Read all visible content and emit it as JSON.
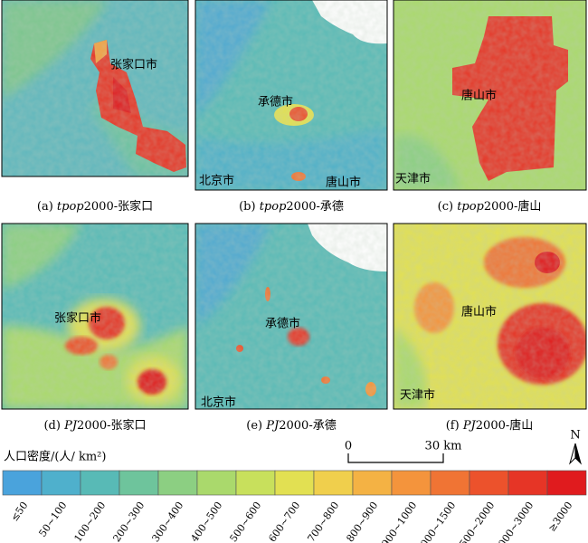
{
  "panels": [
    {
      "caption": {
        "prefix": "(a) ",
        "italic": "tpop",
        "rest": "2000-张家口"
      },
      "labels": [
        "张家口市"
      ]
    },
    {
      "caption": {
        "prefix": "(b) ",
        "italic": "tpop",
        "rest": "2000-承德"
      },
      "labels": [
        "承德市",
        "北京市",
        "唐山市"
      ]
    },
    {
      "caption": {
        "prefix": "(c) ",
        "italic": "tpop",
        "rest": "2000-唐山"
      },
      "labels": [
        "唐山市",
        "天津市"
      ]
    },
    {
      "caption": {
        "prefix": "(d) ",
        "italic": "PJ",
        "rest": "2000-张家口"
      },
      "labels": [
        "张家口市"
      ]
    },
    {
      "caption": {
        "prefix": "(e) ",
        "italic": "PJ",
        "rest": "2000-承德"
      },
      "labels": [
        "承德市",
        "北京市"
      ]
    },
    {
      "caption": {
        "prefix": "(f) ",
        "italic": "PJ",
        "rest": "2000-唐山"
      },
      "labels": [
        "唐山市",
        "天津市"
      ]
    }
  ],
  "legend": {
    "title": "人口密度/(人/ km²)",
    "classes": [
      {
        "label": "≤50",
        "color": "#4aa3dc"
      },
      {
        "label": "50~100",
        "color": "#4fb0cc"
      },
      {
        "label": "100~200",
        "color": "#58bab6"
      },
      {
        "label": "200~300",
        "color": "#6ec49c"
      },
      {
        "label": "300~400",
        "color": "#8ccf82"
      },
      {
        "label": "400~500",
        "color": "#aad96c"
      },
      {
        "label": "500~600",
        "color": "#c8e05c"
      },
      {
        "label": "600~700",
        "color": "#e2e052"
      },
      {
        "label": "700~800",
        "color": "#f0cf4c"
      },
      {
        "label": "800~900",
        "color": "#f4b244"
      },
      {
        "label": "900~1000",
        "color": "#f4943c"
      },
      {
        "label": "1000~1500",
        "color": "#f07434"
      },
      {
        "label": "1500~2000",
        "color": "#ec522c"
      },
      {
        "label": "2000~3000",
        "color": "#e63526"
      },
      {
        "label": "≥3000",
        "color": "#e01b1e"
      }
    ]
  },
  "scale_bar": {
    "start": "0",
    "end": "30 km"
  },
  "north": "N"
}
